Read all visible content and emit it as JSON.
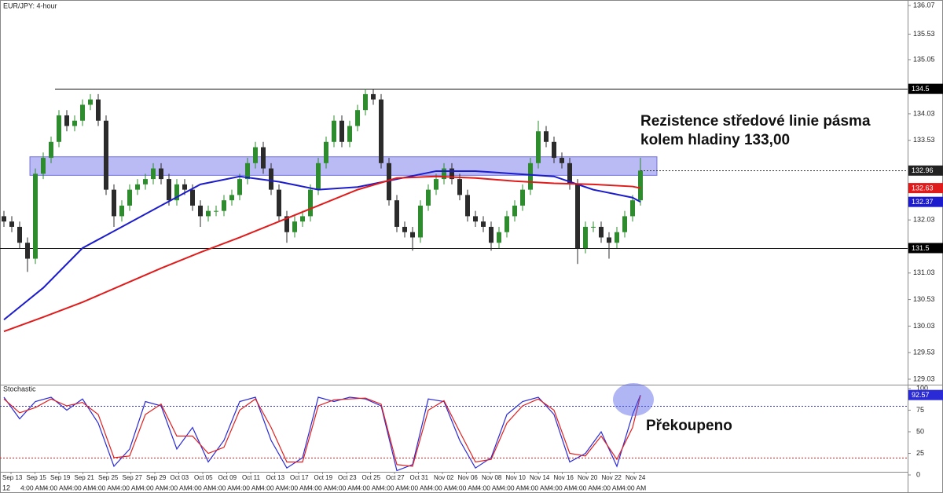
{
  "chart_data": [
    {
      "type": "candlestick",
      "title": "EUR/JPY: 4-hour",
      "categories": [
        "Sep 13",
        "Sep 15",
        "Sep 19",
        "Sep 21",
        "Sep 25",
        "Sep 27",
        "Sep 29",
        "Oct 03",
        "Oct 05",
        "Oct 09",
        "Oct 11",
        "Oct 13",
        "Oct 17",
        "Oct 19",
        "Oct 23",
        "Oct 25",
        "Oct 27",
        "Oct 31",
        "Nov 02",
        "Nov 06",
        "Nov 08",
        "Nov 10",
        "Nov 14",
        "Nov 16",
        "Nov 20",
        "Nov 22",
        "Nov 24"
      ],
      "first_time_label": "12",
      "time_label": "4:00 AM",
      "up_color": "#2e8b2e",
      "down_color": "#2b2b2b",
      "candles": {
        "open": [
          132.1,
          132.0,
          131.9,
          131.6,
          131.3,
          132.9,
          133.2,
          133.5,
          134.0,
          133.8,
          133.9,
          134.2,
          134.3,
          133.9,
          132.6,
          132.1,
          132.3,
          132.6,
          132.7,
          132.8,
          133.0,
          132.8,
          132.4,
          132.7,
          132.6,
          132.3,
          132.1,
          132.2,
          132.2,
          132.4,
          132.5,
          132.8,
          133.1,
          133.4,
          133.0,
          132.6,
          132.1,
          131.8,
          132.0,
          132.1,
          132.6,
          133.1,
          133.5,
          133.9,
          133.5,
          133.8,
          134.1,
          134.4,
          134.3,
          133.1,
          132.4,
          131.9,
          131.8,
          131.7,
          132.3,
          132.6,
          132.8,
          133.0,
          132.8,
          132.5,
          132.1,
          132.0,
          131.9,
          131.6,
          131.8,
          132.1,
          132.3,
          132.6,
          133.1,
          133.7,
          133.5,
          133.2,
          133.1,
          132.7,
          131.5,
          131.9,
          131.9,
          131.7,
          131.6,
          131.8,
          132.1,
          132.4
        ],
        "high": [
          132.2,
          132.1,
          132.0,
          131.7,
          133.0,
          133.3,
          133.6,
          134.1,
          134.1,
          134.0,
          134.3,
          134.4,
          134.4,
          134.0,
          132.7,
          132.4,
          132.7,
          132.8,
          132.9,
          133.1,
          133.1,
          132.9,
          132.8,
          132.8,
          132.7,
          132.4,
          132.3,
          132.3,
          132.5,
          132.6,
          132.9,
          133.2,
          133.5,
          133.5,
          133.1,
          132.7,
          132.2,
          132.1,
          132.2,
          132.7,
          133.2,
          133.6,
          134.0,
          134.0,
          133.9,
          134.2,
          134.5,
          134.5,
          134.4,
          133.2,
          132.5,
          132.0,
          131.9,
          132.4,
          132.7,
          132.9,
          133.1,
          133.1,
          132.9,
          132.6,
          132.2,
          132.1,
          132.0,
          131.9,
          132.2,
          132.4,
          132.7,
          133.2,
          133.9,
          133.8,
          133.6,
          133.3,
          133.2,
          132.8,
          132.0,
          132.0,
          132.0,
          131.8,
          131.9,
          132.2,
          132.5,
          133.2
        ],
        "low": [
          131.9,
          131.8,
          131.5,
          131.05,
          131.2,
          132.8,
          133.1,
          133.4,
          133.7,
          133.7,
          133.8,
          134.1,
          133.8,
          132.5,
          131.9,
          132.0,
          132.2,
          132.5,
          132.6,
          132.7,
          132.7,
          132.3,
          132.3,
          132.5,
          132.2,
          131.9,
          132.0,
          132.1,
          132.1,
          132.3,
          132.4,
          132.7,
          133.0,
          132.9,
          132.5,
          132.0,
          131.6,
          131.7,
          131.9,
          132.0,
          132.5,
          133.0,
          133.4,
          133.4,
          133.4,
          133.7,
          134.0,
          134.2,
          133.0,
          132.3,
          131.8,
          131.7,
          131.45,
          131.6,
          132.2,
          132.5,
          132.7,
          132.7,
          132.4,
          132.0,
          131.9,
          131.8,
          131.45,
          131.5,
          131.7,
          132.0,
          132.2,
          132.5,
          133.0,
          133.4,
          133.1,
          133.0,
          132.6,
          131.2,
          131.4,
          131.8,
          131.6,
          131.3,
          131.5,
          131.7,
          132.0,
          132.3
        ],
        "close": [
          132.0,
          131.9,
          131.6,
          131.3,
          132.9,
          133.2,
          133.5,
          134.0,
          133.8,
          133.9,
          134.2,
          134.3,
          133.9,
          132.6,
          132.1,
          132.3,
          132.6,
          132.7,
          132.8,
          133.0,
          132.8,
          132.4,
          132.7,
          132.6,
          132.3,
          132.1,
          132.2,
          132.2,
          132.4,
          132.5,
          132.8,
          133.1,
          133.4,
          133.0,
          132.6,
          132.1,
          131.8,
          132.0,
          132.1,
          132.6,
          133.1,
          133.5,
          133.9,
          133.5,
          133.8,
          134.1,
          134.4,
          134.3,
          133.1,
          132.4,
          131.9,
          131.8,
          131.7,
          132.3,
          132.6,
          132.8,
          133.0,
          132.8,
          132.5,
          132.1,
          132.0,
          131.9,
          131.6,
          131.8,
          132.1,
          132.3,
          132.6,
          133.1,
          133.7,
          133.5,
          133.2,
          133.1,
          132.7,
          131.5,
          131.9,
          131.9,
          131.7,
          131.6,
          131.8,
          132.1,
          132.4,
          132.96
        ]
      },
      "moving_averages": [
        {
          "color": "#1c1ccc",
          "x": [
            0,
            5,
            10,
            15,
            20,
            25,
            30,
            35,
            40,
            45,
            50,
            55,
            60,
            65,
            70,
            75,
            80,
            81
          ],
          "values": [
            130.15,
            130.75,
            131.5,
            131.9,
            132.3,
            132.7,
            132.85,
            132.75,
            132.6,
            132.65,
            132.8,
            132.95,
            132.95,
            132.9,
            132.85,
            132.6,
            132.45,
            132.37
          ]
        },
        {
          "color": "#e01b1b",
          "x": [
            0,
            5,
            10,
            15,
            20,
            25,
            30,
            35,
            40,
            45,
            50,
            55,
            60,
            65,
            70,
            75,
            80,
            81
          ],
          "values": [
            129.93,
            130.2,
            130.48,
            130.8,
            131.12,
            131.42,
            131.7,
            132.0,
            132.3,
            132.6,
            132.82,
            132.85,
            132.82,
            132.76,
            132.72,
            132.7,
            132.66,
            132.63
          ]
        }
      ],
      "levels": [
        134.5,
        131.5
      ],
      "zone": [
        132.87,
        133.22
      ],
      "annotation": [
        "Rezistence středové linie pásma",
        "kolem hladiny 133,00"
      ],
      "ylim": [
        129.03,
        136.07
      ],
      "yticks": [
        136.07,
        135.53,
        135.05,
        134.03,
        133.53,
        132.03,
        131.03,
        130.53,
        130.03,
        129.53,
        129.03
      ]
    },
    {
      "type": "line",
      "title": "Stochastic",
      "series": [
        {
          "color": "#2a2ad6",
          "x": [
            0,
            2,
            4,
            6,
            8,
            10,
            12,
            14,
            16,
            18,
            20,
            22,
            24,
            26,
            28,
            30,
            32,
            34,
            36,
            38,
            40,
            42,
            44,
            46,
            48,
            50,
            52,
            54,
            56,
            58,
            60,
            62,
            64,
            66,
            68,
            70,
            72,
            74,
            76,
            78,
            80,
            81
          ],
          "values": [
            90,
            65,
            85,
            90,
            75,
            88,
            60,
            10,
            30,
            85,
            80,
            30,
            55,
            15,
            40,
            85,
            90,
            40,
            8,
            20,
            90,
            85,
            90,
            88,
            80,
            5,
            12,
            88,
            85,
            40,
            8,
            20,
            70,
            85,
            90,
            70,
            15,
            25,
            50,
            10,
            70,
            92.57
          ]
        },
        {
          "color": "#e02020",
          "x": [
            0,
            2,
            4,
            6,
            8,
            10,
            12,
            14,
            16,
            18,
            20,
            22,
            24,
            26,
            28,
            30,
            32,
            34,
            36,
            38,
            40,
            42,
            44,
            46,
            48,
            50,
            52,
            54,
            56,
            58,
            60,
            62,
            64,
            66,
            68,
            70,
            72,
            74,
            76,
            78,
            80,
            81
          ],
          "values": [
            88,
            72,
            78,
            88,
            80,
            84,
            70,
            20,
            22,
            70,
            82,
            45,
            45,
            25,
            32,
            75,
            88,
            55,
            15,
            15,
            80,
            87,
            88,
            89,
            82,
            12,
            10,
            75,
            86,
            50,
            15,
            18,
            60,
            80,
            88,
            75,
            25,
            22,
            45,
            18,
            55,
            92
          ]
        }
      ],
      "levels": [
        80,
        20
      ],
      "annotation": "Překoupeno",
      "ylim": [
        0,
        100
      ],
      "yticks": [
        100,
        75,
        50,
        25,
        0
      ]
    }
  ]
}
